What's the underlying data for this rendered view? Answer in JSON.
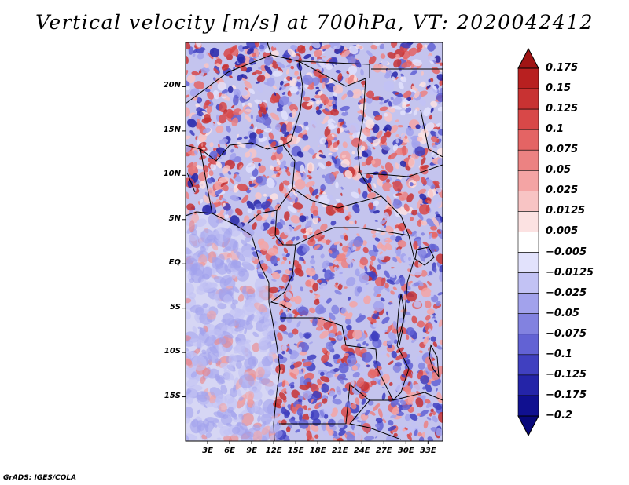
{
  "title": "Vertical velocity [m/s] at 700hPa, VT: 2020042412",
  "footer": "GrADS: IGES/COLA",
  "map": {
    "lon_range": [
      0,
      35
    ],
    "lat_range": [
      -20,
      25
    ],
    "lat_ticks": [
      {
        "lat": 20,
        "label": "20N"
      },
      {
        "lat": 15,
        "label": "15N"
      },
      {
        "lat": 10,
        "label": "10N"
      },
      {
        "lat": 5,
        "label": "5N"
      },
      {
        "lat": 0,
        "label": "EQ"
      },
      {
        "lat": -5,
        "label": "5S"
      },
      {
        "lat": -10,
        "label": "10S"
      },
      {
        "lat": -15,
        "label": "15S"
      }
    ],
    "lon_ticks": [
      {
        "lon": 3,
        "label": "3E"
      },
      {
        "lon": 6,
        "label": "6E"
      },
      {
        "lon": 9,
        "label": "9E"
      },
      {
        "lon": 12,
        "label": "12E"
      },
      {
        "lon": 15,
        "label": "15E"
      },
      {
        "lon": 18,
        "label": "18E"
      },
      {
        "lon": 21,
        "label": "21E"
      },
      {
        "lon": 24,
        "label": "24E"
      },
      {
        "lon": 27,
        "label": "27E"
      },
      {
        "lon": 30,
        "label": "30E"
      },
      {
        "lon": 33,
        "label": "33E"
      }
    ]
  },
  "colorbar": {
    "levels": [
      "0.175",
      "0.15",
      "0.125",
      "0.1",
      "0.075",
      "0.05",
      "0.025",
      "0.0125",
      "0.005",
      "-0.005",
      "-0.0125",
      "-0.025",
      "-0.05",
      "-0.075",
      "-0.1",
      "-0.125",
      "-0.175",
      "-0.2"
    ],
    "colors": [
      "#a01414",
      "#b82020",
      "#c83232",
      "#d84848",
      "#e46464",
      "#ec8282",
      "#f4a4a4",
      "#f8c4c4",
      "#fce2e2",
      "#ffffff",
      "#e2e2fc",
      "#c2c2f4",
      "#a2a2ec",
      "#8282e0",
      "#6262d4",
      "#4040c0",
      "#2424a8",
      "#101090",
      "#08087a"
    ]
  }
}
